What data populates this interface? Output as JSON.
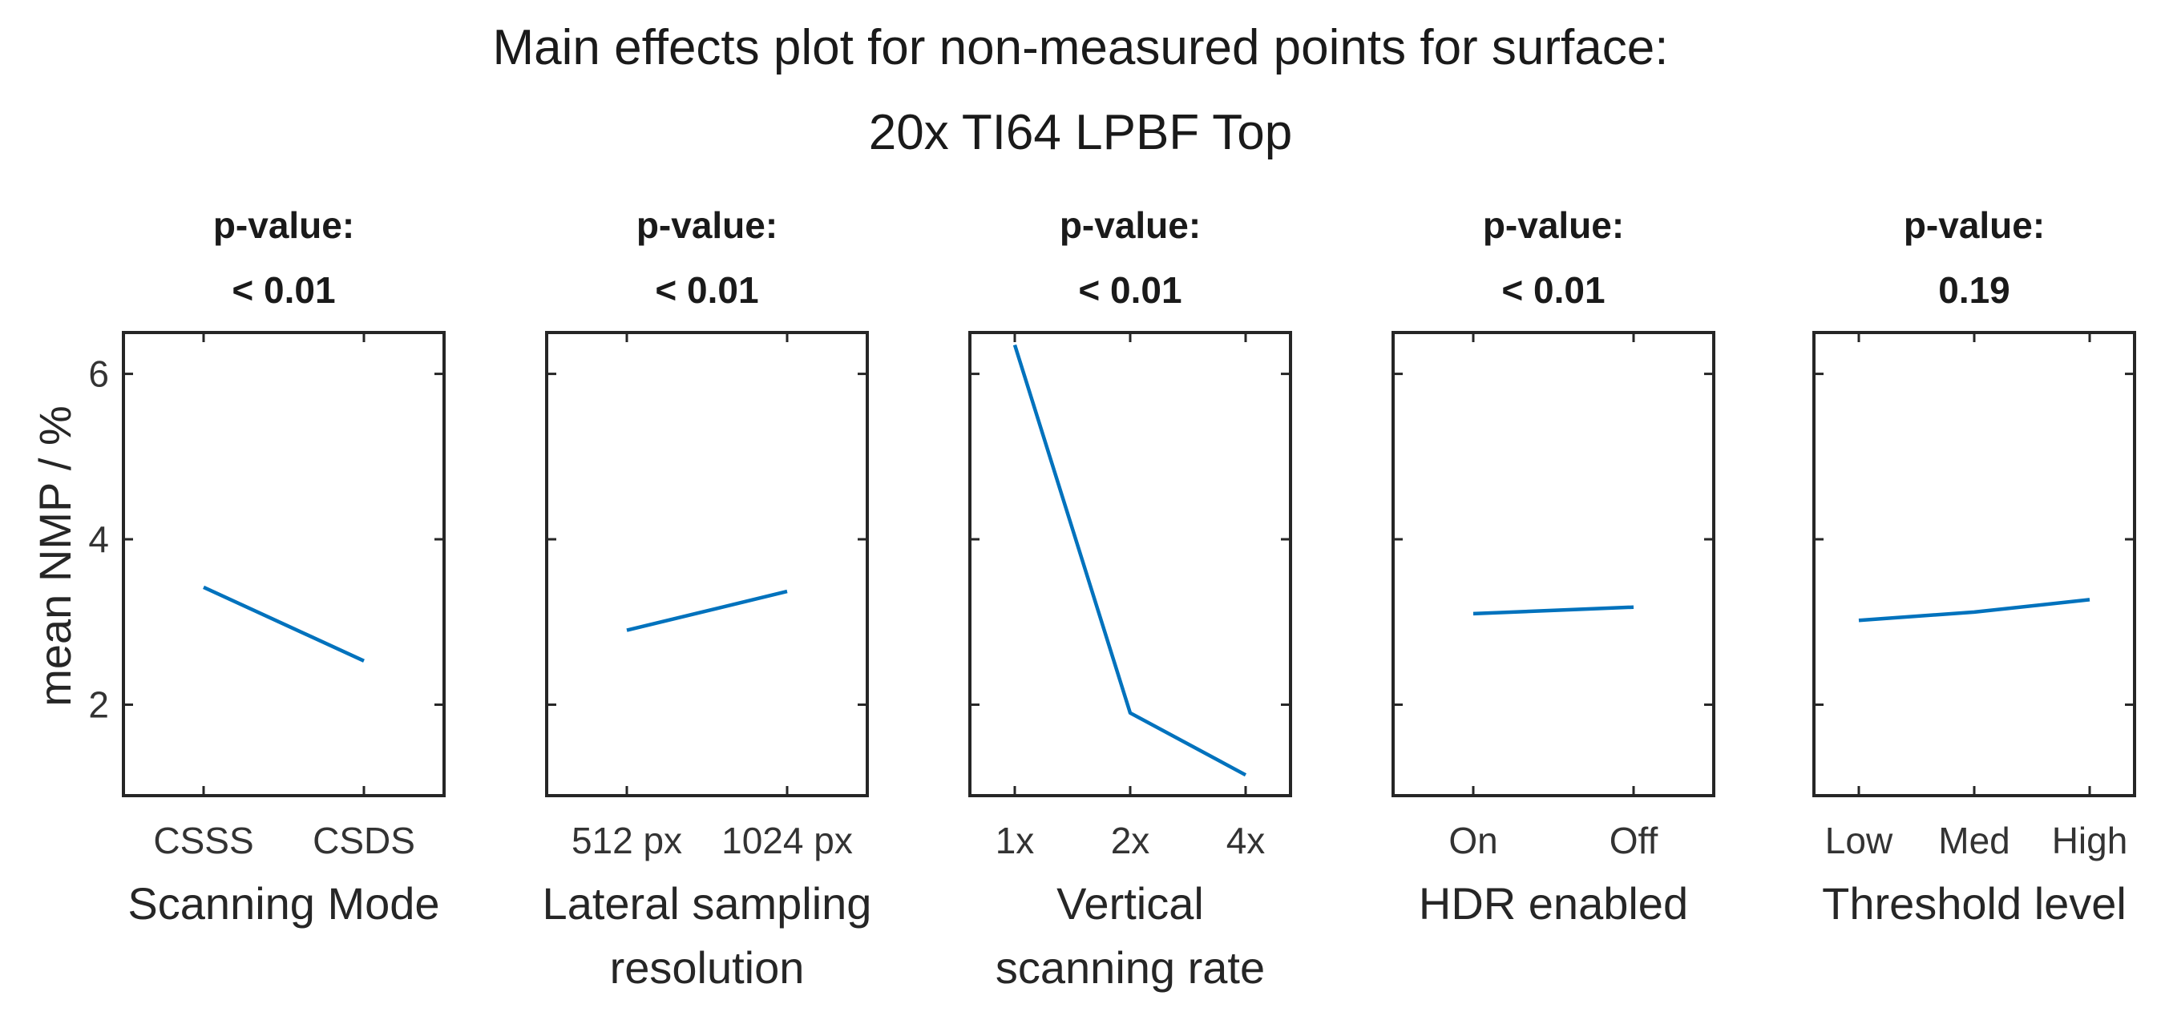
{
  "chart_data": {
    "type": "line",
    "title_lines": [
      "Main effects plot for non-measured points for surface:",
      "20x TI64 LPBF Top"
    ],
    "ylabel": "mean NMP / %",
    "ylim": [
      0.9,
      6.5
    ],
    "yticks": [
      2,
      4,
      6
    ],
    "series_color": "#0072BD",
    "panels": [
      {
        "p_label": "p-value:",
        "p_value": "< 0.01",
        "xlabel_lines": [
          "Scanning Mode"
        ],
        "categories": [
          "CSSS",
          "CSDS"
        ],
        "values": [
          3.42,
          2.53
        ]
      },
      {
        "p_label": "p-value:",
        "p_value": "< 0.01",
        "xlabel_lines": [
          "Lateral sampling",
          "resolution"
        ],
        "categories": [
          "512 px",
          "1024 px"
        ],
        "values": [
          2.9,
          3.37
        ]
      },
      {
        "p_label": "p-value:",
        "p_value": "< 0.01",
        "xlabel_lines": [
          "Vertical",
          "scanning rate"
        ],
        "categories": [
          "1x",
          "2x",
          "4x"
        ],
        "values": [
          6.35,
          1.9,
          1.15
        ]
      },
      {
        "p_label": "p-value:",
        "p_value": "< 0.01",
        "xlabel_lines": [
          "HDR enabled"
        ],
        "categories": [
          "On",
          "Off"
        ],
        "values": [
          3.1,
          3.18
        ]
      },
      {
        "p_label": "p-value:",
        "p_value": "0.19",
        "xlabel_lines": [
          "Threshold level"
        ],
        "categories": [
          "Low",
          "Med",
          "High"
        ],
        "values": [
          3.02,
          3.12,
          3.27
        ]
      }
    ]
  }
}
